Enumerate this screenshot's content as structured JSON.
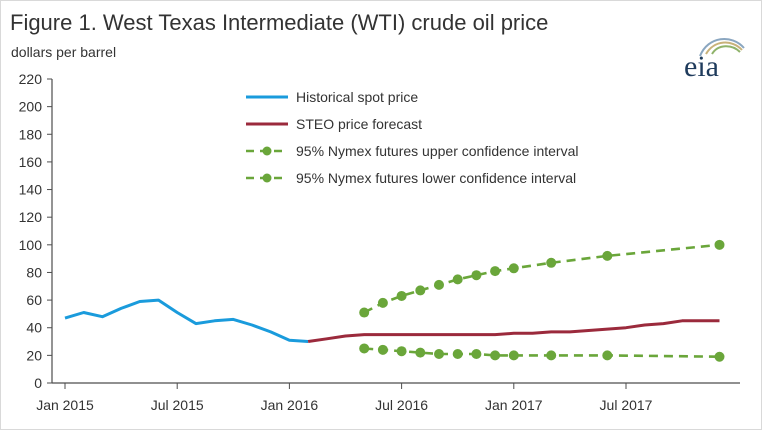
{
  "header": {
    "title": "Figure 1. West Texas Intermediate (WTI) crude oil price",
    "subtitle": "dollars per barrel",
    "logo_text": "eia"
  },
  "colors": {
    "historical": "#1a9bdc",
    "forecast": "#9b2a3c",
    "confidence": "#6aa63a",
    "axis": "#4d4d4d"
  },
  "chart_data": {
    "type": "line",
    "title": "Figure 1. West Texas Intermediate (WTI) crude oil price",
    "ylabel": "dollars per barrel",
    "xlabel": "",
    "ylim": [
      0,
      220
    ],
    "yticks": [
      0,
      20,
      40,
      60,
      80,
      100,
      120,
      140,
      160,
      180,
      200,
      220
    ],
    "xlim": [
      "2015-01",
      "2017-12"
    ],
    "xticks": [
      {
        "x": "2015-01",
        "label": "Jan 2015"
      },
      {
        "x": "2015-07",
        "label": "Jul 2015"
      },
      {
        "x": "2016-01",
        "label": "Jan 2016"
      },
      {
        "x": "2016-07",
        "label": "Jul 2016"
      },
      {
        "x": "2017-01",
        "label": "Jan 2017"
      },
      {
        "x": "2017-07",
        "label": "Jul 2017"
      }
    ],
    "grid": false,
    "legend_position": "top-center",
    "series": [
      {
        "name": "Historical spot price",
        "style": "solid",
        "x": [
          "2015-01",
          "2015-02",
          "2015-03",
          "2015-04",
          "2015-05",
          "2015-06",
          "2015-07",
          "2015-08",
          "2015-09",
          "2015-10",
          "2015-11",
          "2015-12",
          "2016-01",
          "2016-02"
        ],
        "values": [
          47,
          51,
          48,
          54,
          59,
          60,
          51,
          43,
          45,
          46,
          42,
          37,
          31,
          30
        ]
      },
      {
        "name": "STEO price forecast",
        "style": "solid",
        "x": [
          "2016-02",
          "2016-03",
          "2016-04",
          "2016-05",
          "2016-06",
          "2016-07",
          "2016-08",
          "2016-09",
          "2016-10",
          "2016-11",
          "2016-12",
          "2017-01",
          "2017-02",
          "2017-03",
          "2017-04",
          "2017-05",
          "2017-06",
          "2017-07",
          "2017-08",
          "2017-09",
          "2017-10",
          "2017-11",
          "2017-12"
        ],
        "values": [
          30,
          32,
          34,
          35,
          35,
          35,
          35,
          35,
          35,
          35,
          35,
          36,
          36,
          37,
          37,
          38,
          39,
          40,
          42,
          43,
          45,
          45,
          45
        ]
      },
      {
        "name": "95% Nymex futures upper confidence interval",
        "style": "dashed-markers",
        "x": [
          "2016-05",
          "2016-06",
          "2016-07",
          "2016-08",
          "2016-09",
          "2016-10",
          "2016-11",
          "2016-12",
          "2017-01",
          "2017-03",
          "2017-06",
          "2017-12"
        ],
        "values": [
          51,
          58,
          63,
          67,
          71,
          75,
          78,
          81,
          83,
          87,
          92,
          100
        ]
      },
      {
        "name": "95% Nymex futures lower confidence interval",
        "style": "dashed-markers",
        "x": [
          "2016-05",
          "2016-06",
          "2016-07",
          "2016-08",
          "2016-09",
          "2016-10",
          "2016-11",
          "2016-12",
          "2017-01",
          "2017-03",
          "2017-06",
          "2017-12"
        ],
        "values": [
          25,
          24,
          23,
          22,
          21,
          21,
          21,
          20,
          20,
          20,
          20,
          19
        ]
      }
    ]
  }
}
